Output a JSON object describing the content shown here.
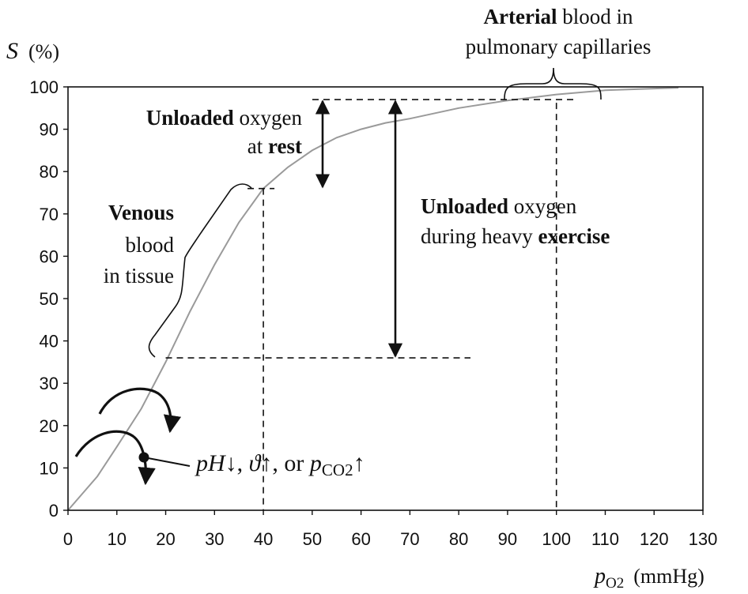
{
  "chart_data": {
    "type": "line",
    "xlabel_var": "p",
    "xlabel_sub": "O2",
    "xlabel_unit": "(mmHg)",
    "ylabel_var": "S",
    "ylabel_unit": "(%)",
    "xlim": [
      0,
      130
    ],
    "ylim": [
      0,
      100
    ],
    "x_ticks": [
      0,
      10,
      20,
      30,
      40,
      50,
      60,
      70,
      80,
      90,
      100,
      110,
      120,
      130
    ],
    "y_ticks": [
      0,
      10,
      20,
      30,
      40,
      50,
      60,
      70,
      80,
      90,
      100
    ],
    "grid": false,
    "line_color": "#9a9a9a",
    "series": [
      {
        "x": [
          0,
          3,
          6,
          10,
          15,
          20,
          25,
          30,
          35,
          40,
          45,
          50,
          55,
          60,
          65,
          70,
          80,
          90,
          100,
          110,
          120,
          125
        ],
        "y": [
          0,
          4,
          8,
          15,
          24,
          35,
          47,
          58,
          68,
          76,
          81,
          85,
          88,
          90,
          91.5,
          92.5,
          95,
          96.8,
          98.2,
          99.2,
          99.6,
          99.8
        ]
      }
    ],
    "reference_points": {
      "venous_rest": {
        "x": 40,
        "y": 76
      },
      "arterial": {
        "x": 100,
        "y": 97
      },
      "venous_exercise": {
        "x": 20,
        "y": 36
      }
    },
    "annotations": {
      "arterial_bold": "Arterial",
      "arterial_rest": " blood in",
      "arterial_line2": "pulmonary capillaries",
      "rest_bold": "Unloaded",
      "rest_rest": " oxygen",
      "rest_line2_pre": "at ",
      "rest_line2_bold": "rest",
      "venous_bold": "Venous",
      "venous_line2": "blood",
      "venous_line3": "in tissue",
      "exercise_bold": "Unloaded",
      "exercise_rest": " oxygen",
      "exercise_line2_pre": "during heavy ",
      "exercise_line2_bold": "exercise",
      "shift_ph": "pH",
      "shift_ph_arrow": "↓, ",
      "shift_theta": "ϑ",
      "shift_theta_arrow": "↑, or ",
      "shift_p": "p",
      "shift_p_sub": "CO2",
      "shift_p_arrow": "↑"
    }
  }
}
